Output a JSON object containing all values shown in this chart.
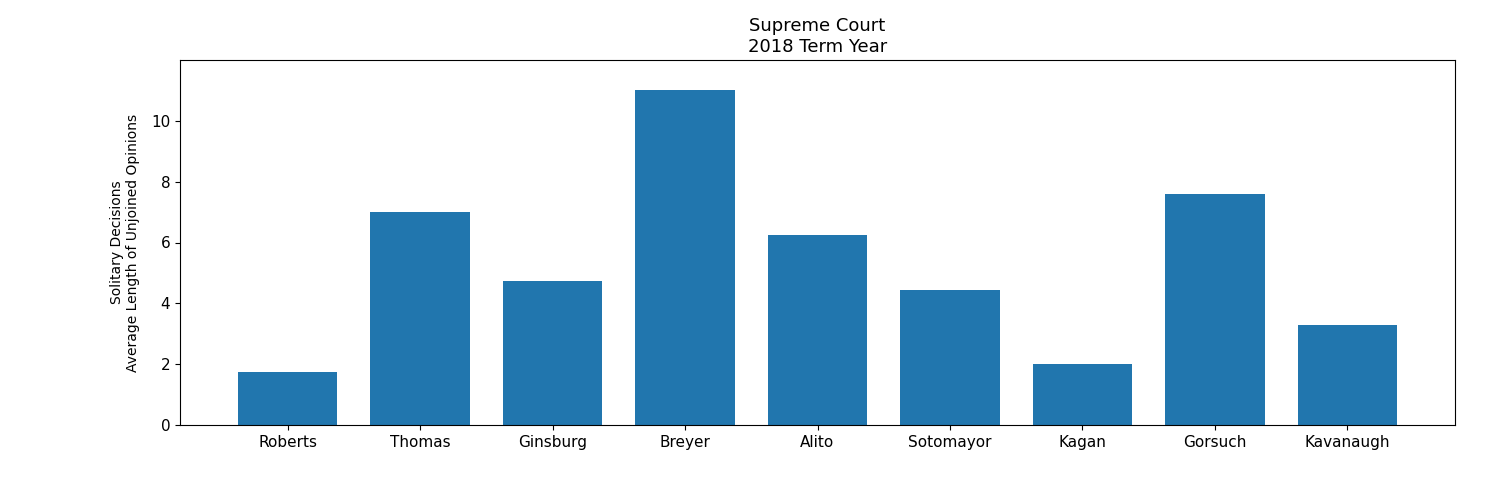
{
  "justices": [
    "Roberts",
    "Thomas",
    "Ginsburg",
    "Breyer",
    "Alito",
    "Sotomayor",
    "Kagan",
    "Gorsuch",
    "Kavanaugh"
  ],
  "values": [
    1.75,
    7.0,
    4.75,
    11.0,
    6.25,
    4.45,
    2.0,
    7.6,
    3.3
  ],
  "bar_color": "#2176ae",
  "title_line1": "Supreme Court",
  "title_line2": "2018 Term Year",
  "ylabel_line1": "Solitary Decisions",
  "ylabel_line2": "Average Length of Unjoined Opinions",
  "ylim": [
    0,
    12
  ],
  "yticks": [
    0,
    2,
    4,
    6,
    8,
    10
  ],
  "background_color": "#ffffff",
  "title_fontsize": 13,
  "tick_fontsize": 11,
  "ylabel_fontsize": 10,
  "bar_width": 0.75
}
